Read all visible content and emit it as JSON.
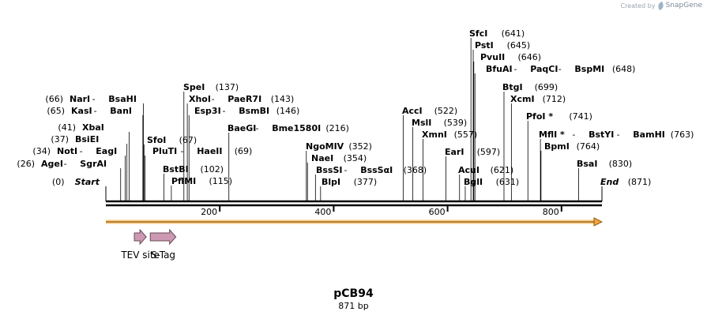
{
  "watermark": {
    "created_by": "Created by",
    "brand": "SnapGene"
  },
  "plasmid": {
    "name": "pCB94",
    "size_label": "871 bp",
    "length": 871
  },
  "ends": [
    {
      "label": "Start",
      "pos_label": "(0)",
      "pos": 0
    },
    {
      "label": "End",
      "pos_label": "(871)",
      "pos": 871
    }
  ],
  "ruler_ticks": [
    {
      "pos": 200,
      "label": "200"
    },
    {
      "pos": 400,
      "label": "400"
    },
    {
      "pos": 600,
      "label": "600"
    },
    {
      "pos": 800,
      "label": "800"
    }
  ],
  "sites": [
    {
      "parts": [
        "AgeI",
        " - ",
        "SgrAI"
      ],
      "pos_label": "(26)",
      "pos": 26
    },
    {
      "parts": [
        "NotI",
        " - ",
        "EagI"
      ],
      "pos_label": "(34)",
      "pos": 34
    },
    {
      "parts": [
        "BsiEI"
      ],
      "pos_label": "(37)",
      "pos": 37
    },
    {
      "parts": [
        "XbaI"
      ],
      "pos_label": "(41)",
      "pos": 41
    },
    {
      "parts": [
        "KasI",
        " - ",
        "BanI"
      ],
      "pos_label": "(65)",
      "pos": 65
    },
    {
      "parts": [
        "NarI",
        " - ",
        "BsaHI"
      ],
      "pos_label": "(66)",
      "pos": 66
    },
    {
      "parts": [
        "SfoI"
      ],
      "pos_label": "(67)",
      "pos": 67
    },
    {
      "parts": [
        "PluTI",
        " - ",
        "HaeII"
      ],
      "pos_label": "(69)",
      "pos": 69
    },
    {
      "parts": [
        "BstBI"
      ],
      "pos_label": "(102)",
      "pos": 102
    },
    {
      "parts": [
        "PflMI"
      ],
      "pos_label": "(115)",
      "pos": 115
    },
    {
      "parts": [
        "SpeI"
      ],
      "pos_label": "(137)",
      "pos": 137
    },
    {
      "parts": [
        "XhoI",
        " - ",
        "PaeR7I"
      ],
      "pos_label": "(143)",
      "pos": 143
    },
    {
      "parts": [
        "Esp3I",
        " - ",
        "BsmBI"
      ],
      "pos_label": "(146)",
      "pos": 146
    },
    {
      "parts": [
        "BaeGI",
        " - ",
        "Bme1580I"
      ],
      "pos_label": "(216)",
      "pos": 216
    },
    {
      "parts": [
        "NgoMIV"
      ],
      "pos_label": "(352)",
      "pos": 352
    },
    {
      "parts": [
        "NaeI"
      ],
      "pos_label": "(354)",
      "pos": 354
    },
    {
      "parts": [
        "BssSI",
        " - ",
        "BssSαI"
      ],
      "pos_label": "(368)",
      "pos": 368
    },
    {
      "parts": [
        "BlpI"
      ],
      "pos_label": "(377)",
      "pos": 377
    },
    {
      "parts": [
        "AccI"
      ],
      "pos_label": "(522)",
      "pos": 522
    },
    {
      "parts": [
        "MslI"
      ],
      "pos_label": "(539)",
      "pos": 539
    },
    {
      "parts": [
        "XmnI"
      ],
      "pos_label": "(557)",
      "pos": 557
    },
    {
      "parts": [
        "EarI"
      ],
      "pos_label": "(597)",
      "pos": 597
    },
    {
      "parts": [
        "AcuI"
      ],
      "pos_label": "(621)",
      "pos": 621
    },
    {
      "parts": [
        "BglI"
      ],
      "pos_label": "(631)",
      "pos": 631
    },
    {
      "parts": [
        "SfcI"
      ],
      "pos_label": "(641)",
      "pos": 641
    },
    {
      "parts": [
        "PstI"
      ],
      "pos_label": "(645)",
      "pos": 645
    },
    {
      "parts": [
        "PvuII"
      ],
      "pos_label": "(646)",
      "pos": 646
    },
    {
      "parts": [
        "BfuAI",
        " - ",
        "PaqCI",
        " - ",
        "BspMI"
      ],
      "pos_label": "(648)",
      "pos": 648
    },
    {
      "parts": [
        "BtgI"
      ],
      "pos_label": "(699)",
      "pos": 699
    },
    {
      "parts": [
        "XcmI"
      ],
      "pos_label": "(712)",
      "pos": 712
    },
    {
      "parts": [
        "PfoI *"
      ],
      "pos_label": "(741)",
      "pos": 741
    },
    {
      "parts": [
        "MflI *",
        " - ",
        "BstYI",
        " - ",
        "BamHI"
      ],
      "pos_label": "(763)",
      "pos": 763
    },
    {
      "parts": [
        "BpmI"
      ],
      "pos_label": "(764)",
      "pos": 764
    },
    {
      "parts": [
        "BsaI"
      ],
      "pos_label": "(830)",
      "pos": 830
    }
  ],
  "features": [
    {
      "label": "TEV site",
      "start": 50,
      "end": 71,
      "color": "#cc99b2"
    },
    {
      "label": "S-Tag",
      "start": 78,
      "end": 123,
      "color": "#cc99b2"
    }
  ],
  "colors": {
    "backbone": "#000000",
    "orf_arrow": "#f6a33c",
    "feature": "#cc99b2"
  }
}
